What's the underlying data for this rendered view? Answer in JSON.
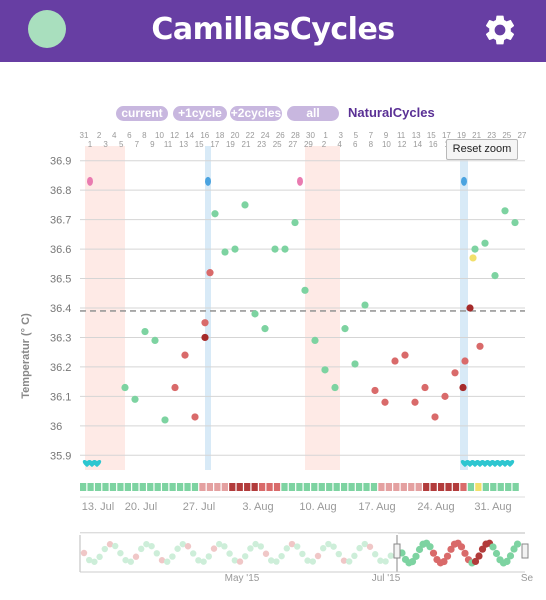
{
  "header": {
    "title": "CamillasCycles"
  },
  "range_buttons": [
    "current",
    "+1cycle",
    "+2cycles",
    "all"
  ],
  "brand": "NaturalCycles",
  "reset_zoom": "Reset zoom",
  "colors": {
    "header": "#673ea3",
    "green": "#7dd3a1",
    "red": "#d96a6a",
    "dark_red": "#a52a2a",
    "yellow": "#f2e06b",
    "cyan": "#2ec6d0",
    "blue_band": "#d8eaf7",
    "pink_band": "#fde3de"
  },
  "top_axis": {
    "row1": [
      "31",
      "2",
      "4",
      "6",
      "8",
      "10",
      "12",
      "14",
      "16",
      "18",
      "20",
      "22",
      "24",
      "26",
      "28",
      "30",
      "1",
      "3",
      "5",
      "7",
      "9",
      "11",
      "13",
      "15",
      "17",
      "19",
      "21",
      "23",
      "25",
      "27"
    ],
    "row2": [
      "1",
      "3",
      "5",
      "7",
      "9",
      "11",
      "13",
      "15",
      "17",
      "19",
      "21",
      "23",
      "25",
      "27",
      "29",
      "2",
      "4",
      "6",
      "8",
      "10",
      "12",
      "14",
      "16",
      "18",
      "20",
      "22",
      "24",
      "26"
    ]
  },
  "chart_data": {
    "type": "scatter",
    "title": "",
    "ylabel": "Temperatur (° C)",
    "ylim": [
      35.85,
      36.95
    ],
    "y_ticks": [
      "36.9",
      "36.8",
      "36.7",
      "36.6",
      "36.5",
      "36.4",
      "36.3",
      "36.2",
      "36.1",
      "36",
      "35.9"
    ],
    "x_ticks": [
      "13. Jul",
      "20. Jul",
      "27. Jul",
      "3. Aug",
      "10. Aug",
      "17. Aug",
      "24. Aug",
      "31. Aug"
    ],
    "cover_line": 36.39,
    "series": [
      {
        "color": "green",
        "points": [
          [
            12,
            36.13
          ],
          [
            13,
            36.09
          ],
          [
            14,
            36.32
          ],
          [
            15,
            36.29
          ],
          [
            16,
            36.02
          ],
          [
            21,
            36.72
          ],
          [
            22,
            36.59
          ],
          [
            23,
            36.6
          ],
          [
            24,
            36.75
          ],
          [
            25,
            36.38
          ],
          [
            26,
            36.33
          ],
          [
            27,
            36.6
          ],
          [
            28,
            36.6
          ],
          [
            29,
            36.69
          ],
          [
            30,
            36.46
          ],
          [
            31,
            36.29
          ],
          [
            32,
            36.19
          ],
          [
            33,
            36.13
          ],
          [
            34,
            36.33
          ],
          [
            35,
            36.21
          ],
          [
            36,
            36.41
          ],
          [
            47,
            36.6
          ],
          [
            48,
            36.62
          ],
          [
            49,
            36.51
          ],
          [
            50,
            36.73
          ],
          [
            51,
            36.69
          ]
        ]
      },
      {
        "color": "red",
        "points": [
          [
            17,
            36.13
          ],
          [
            18,
            36.24
          ],
          [
            19,
            36.03
          ],
          [
            20,
            36.35
          ],
          [
            20.5,
            36.52
          ],
          [
            37,
            36.12
          ],
          [
            38,
            36.08
          ],
          [
            39,
            36.22
          ],
          [
            40,
            36.24
          ],
          [
            41,
            36.08
          ],
          [
            42,
            36.13
          ],
          [
            43,
            36.03
          ],
          [
            44,
            36.1
          ],
          [
            45,
            36.18
          ],
          [
            46,
            36.22
          ],
          [
            47.5,
            36.27
          ]
        ]
      },
      {
        "color": "dark_red",
        "points": [
          [
            20,
            36.3
          ],
          [
            45.8,
            36.13
          ],
          [
            46.5,
            36.4
          ]
        ]
      },
      {
        "color": "yellow",
        "points": [
          [
            46.8,
            36.57
          ]
        ]
      }
    ],
    "pink_bands": [
      [
        8,
        12
      ],
      [
        30,
        33.5
      ]
    ],
    "blue_bands": [
      [
        20,
        20.5
      ],
      [
        45.5,
        46.3
      ]
    ],
    "ovulation_drops": [
      [
        8.5,
        "pink"
      ],
      [
        20.3,
        "blue"
      ],
      [
        29.5,
        "pink"
      ],
      [
        45.9,
        "blue"
      ]
    ],
    "period_hearts": {
      "first": [
        8.2,
        8.7,
        9.2
      ],
      "second": [
        46.0,
        46.5,
        47.0,
        47.5,
        48.0,
        48.5,
        49.0,
        49.5,
        50.0,
        50.5
      ]
    }
  },
  "navigator": {
    "labels": [
      "May '15",
      "Jul '15",
      "Se"
    ]
  }
}
